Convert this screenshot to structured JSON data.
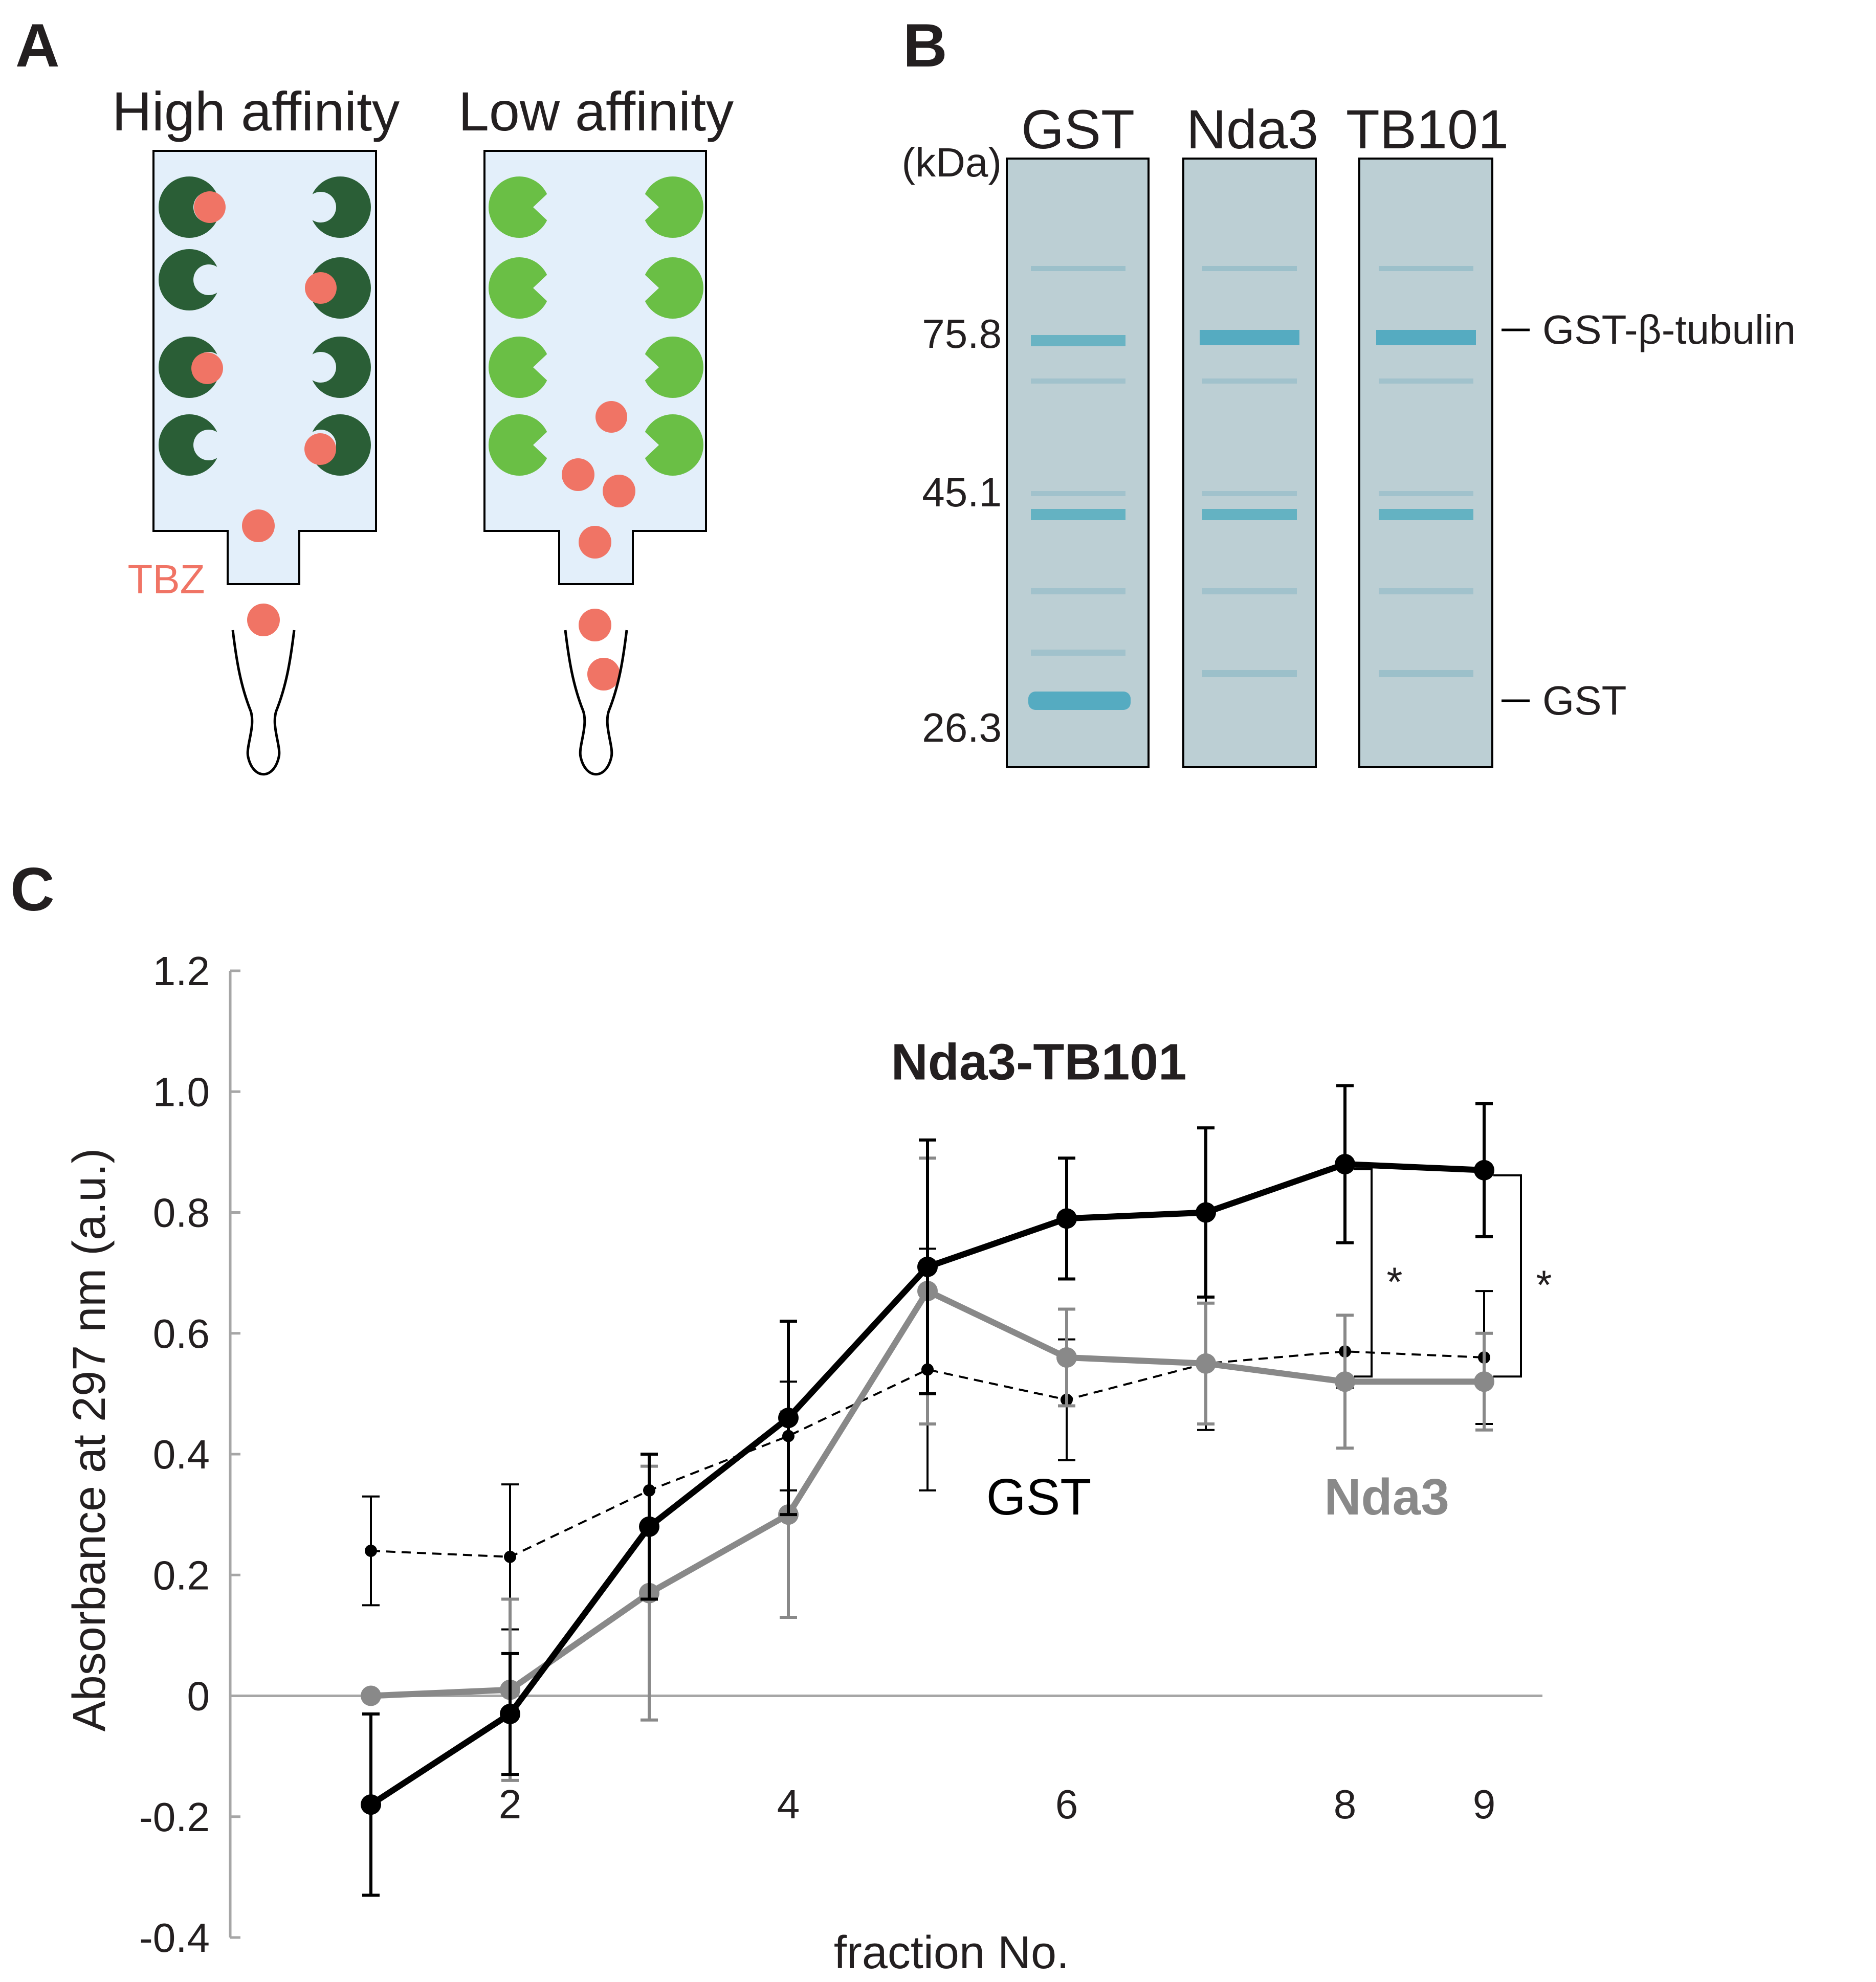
{
  "panels": {
    "a": {
      "letter": "A",
      "high_label": "High affinity",
      "low_label": "Low affinity",
      "tbz_label": "TBZ"
    },
    "b": {
      "letter": "B",
      "lanes": [
        "GST",
        "Nda3",
        "TB101"
      ],
      "unit": "(kDa)",
      "markers": [
        "75.8",
        "45.1",
        "26.3"
      ],
      "band_labels": [
        "GST-β-tubulin",
        "GST"
      ]
    },
    "c": {
      "letter": "C"
    }
  },
  "colors": {
    "dark_green": "#2a5e36",
    "light_green": "#6abf45",
    "tbz": "#f07465",
    "column_fill": "#e3effa",
    "gel": "#bccfd4",
    "band": "#5aaec0",
    "nda3_gray": "#898989",
    "black": "#000000"
  },
  "chart_data": {
    "type": "line",
    "title": "",
    "xlabel": "fraction No.",
    "ylabel": "Absorbance at 297 nm (a.u.)",
    "ylim": [
      -0.4,
      1.2
    ],
    "yticks": [
      "1.2",
      "1.0",
      "0.8",
      "0.6",
      "0.4",
      "0.2",
      "0",
      "-0.2",
      "-0.4"
    ],
    "ytick_values": [
      1.2,
      1.0,
      0.8,
      0.6,
      0.4,
      0.2,
      0,
      -0.2,
      -0.4
    ],
    "x": [
      1,
      2,
      3,
      4,
      5,
      6,
      7,
      8,
      9
    ],
    "xtick_values": [
      2,
      4,
      6,
      8,
      9
    ],
    "xticks": [
      "2",
      "4",
      "6",
      "8",
      "9"
    ],
    "series": [
      {
        "name": "Nda3-TB101",
        "label": "Nda3-TB101",
        "style": "solid-black",
        "values": [
          -0.18,
          -0.03,
          0.28,
          0.46,
          0.71,
          0.79,
          0.8,
          0.88,
          0.87
        ],
        "errors": [
          0.15,
          0.1,
          0.12,
          0.16,
          0.21,
          0.1,
          0.14,
          0.13,
          0.11
        ]
      },
      {
        "name": "Nda3",
        "label": "Nda3",
        "style": "solid-gray",
        "values": [
          0.0,
          0.01,
          0.17,
          0.3,
          0.67,
          0.56,
          0.55,
          0.52,
          0.52
        ],
        "errors": [
          0.0,
          0.15,
          0.21,
          0.17,
          0.22,
          0.08,
          0.1,
          0.11,
          0.08
        ]
      },
      {
        "name": "GST",
        "label": "GST",
        "style": "dashed-black",
        "values": [
          0.24,
          0.23,
          0.34,
          0.43,
          0.54,
          0.49,
          0.55,
          0.57,
          0.56
        ],
        "errors": [
          0.09,
          0.12,
          0.06,
          0.09,
          0.2,
          0.1,
          0.11,
          0.06,
          0.11
        ]
      }
    ],
    "significance": [
      {
        "x": 8,
        "label": "*"
      },
      {
        "x": 9,
        "label": "*"
      }
    ]
  }
}
